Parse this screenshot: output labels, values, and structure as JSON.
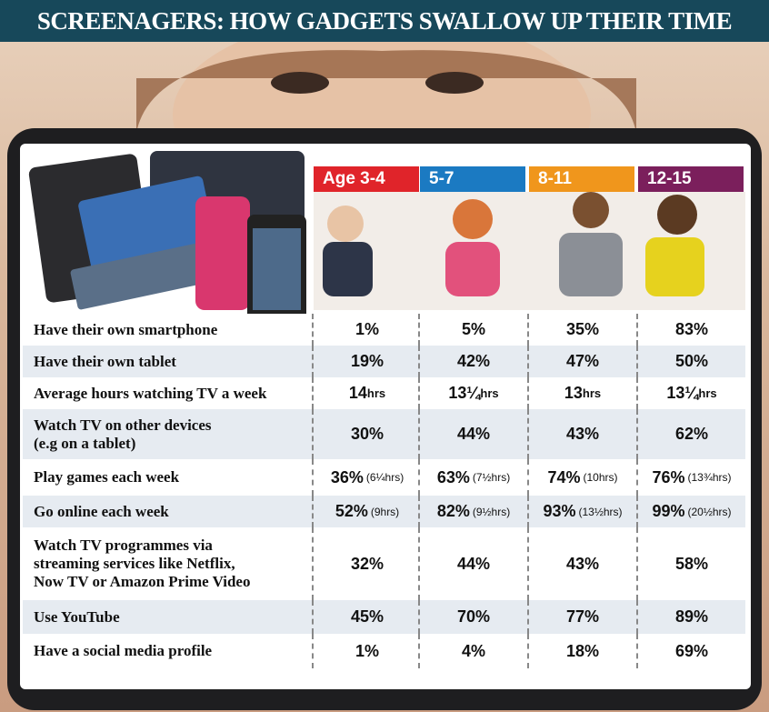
{
  "header": {
    "title": "SCREENAGERS: HOW GADGETS SWALLOW UP THEIR TIME"
  },
  "table": {
    "columns": [
      {
        "label": "Age 3-4",
        "color": "#e0242a"
      },
      {
        "label": "5-7",
        "color": "#1b7ac2"
      },
      {
        "label": "8-11",
        "color": "#f0961c"
      },
      {
        "label": "12-15",
        "color": "#7b1f5c"
      }
    ],
    "rows": [
      {
        "label_lines": [
          "Have their own smartphone"
        ],
        "cells": [
          {
            "main": "1%"
          },
          {
            "main": "5%"
          },
          {
            "main": "35%"
          },
          {
            "main": "83%"
          }
        ]
      },
      {
        "label_lines": [
          "Have their own tablet"
        ],
        "cells": [
          {
            "main": "19%"
          },
          {
            "main": "42%"
          },
          {
            "main": "47%"
          },
          {
            "main": "50%"
          }
        ]
      },
      {
        "label_lines": [
          "Average hours watching TV a week"
        ],
        "cells": [
          {
            "main": "14",
            "small": "hrs"
          },
          {
            "main": "13¼",
            "small": "hrs"
          },
          {
            "main": "13",
            "small": "hrs"
          },
          {
            "main": "13¼",
            "small": "hrs"
          }
        ]
      },
      {
        "label_lines": [
          "Watch TV on other devices",
          "(e.g on a tablet)"
        ],
        "cells": [
          {
            "main": "30%"
          },
          {
            "main": "44%"
          },
          {
            "main": "43%"
          },
          {
            "main": "62%"
          }
        ]
      },
      {
        "label_lines": [
          "Play games each week"
        ],
        "cells": [
          {
            "main": "36%",
            "small": "(6¼hrs)"
          },
          {
            "main": "63%",
            "small": "(7½hrs)"
          },
          {
            "main": "74%",
            "small": "(10hrs)"
          },
          {
            "main": "76%",
            "small": "(13¾hrs)"
          }
        ]
      },
      {
        "label_lines": [
          "Go online each week"
        ],
        "cells": [
          {
            "main": "52%",
            "small": "(9hrs)"
          },
          {
            "main": "82%",
            "small": "(9½hrs)"
          },
          {
            "main": "93%",
            "small": "(13½hrs)"
          },
          {
            "main": "99%",
            "small": "(20½hrs)"
          }
        ]
      },
      {
        "label_lines": [
          "Watch TV programmes via",
          "streaming services like Netflix,",
          "Now TV or Amazon Prime Video"
        ],
        "cells": [
          {
            "main": "32%"
          },
          {
            "main": "44%"
          },
          {
            "main": "43%"
          },
          {
            "main": "58%"
          }
        ]
      },
      {
        "label_lines": [
          "Use YouTube"
        ],
        "cells": [
          {
            "main": "45%"
          },
          {
            "main": "70%"
          },
          {
            "main": "77%"
          },
          {
            "main": "89%"
          }
        ]
      },
      {
        "label_lines": [
          "Have a social media profile"
        ],
        "cells": [
          {
            "main": "1%"
          },
          {
            "main": "4%"
          },
          {
            "main": "18%"
          },
          {
            "main": "69%"
          }
        ]
      }
    ]
  }
}
